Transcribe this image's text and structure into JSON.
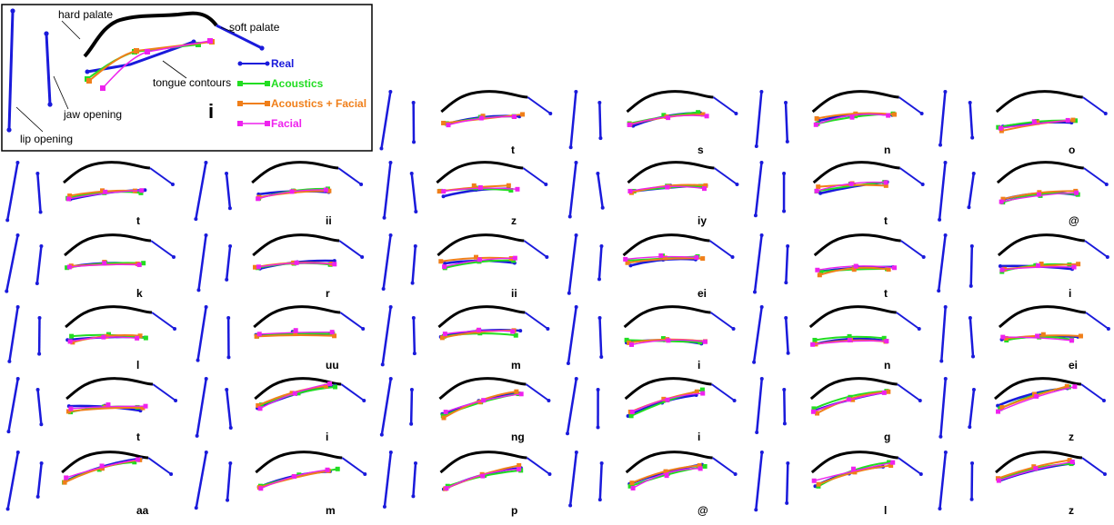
{
  "legend_panel": {
    "annotations": {
      "hard_palate": "hard palate",
      "soft_palate": "soft palate",
      "tongue_contours": "tongue contours",
      "jaw_opening": "jaw opening",
      "lip_opening": "lip opening"
    },
    "phoneme": "i",
    "series": [
      {
        "key": "real",
        "label": "Real",
        "color": "#1a1adb"
      },
      {
        "key": "acoustics",
        "label": "Acoustics",
        "color": "#22dd22"
      },
      {
        "key": "acoustics_facial",
        "label": "Acoustics + Facial",
        "color": "#f07f1a"
      },
      {
        "key": "facial",
        "label": "Facial",
        "color": "#ee22ee"
      }
    ]
  },
  "colors": {
    "palate": "#000000",
    "articulators": "#1a1adb"
  },
  "panels": [
    {
      "label": "t"
    },
    {
      "label": "s"
    },
    {
      "label": "n"
    },
    {
      "label": "o"
    },
    {
      "label": "t"
    },
    {
      "label": "ii"
    },
    {
      "label": "z"
    },
    {
      "label": "iy"
    },
    {
      "label": "t"
    },
    {
      "label": "@"
    },
    {
      "label": "k"
    },
    {
      "label": "r"
    },
    {
      "label": "ii"
    },
    {
      "label": "ei"
    },
    {
      "label": "t"
    },
    {
      "label": "i"
    },
    {
      "label": "l"
    },
    {
      "label": "uu"
    },
    {
      "label": "m"
    },
    {
      "label": "i"
    },
    {
      "label": "n"
    },
    {
      "label": "ei"
    },
    {
      "label": "t"
    },
    {
      "label": "i"
    },
    {
      "label": "ng"
    },
    {
      "label": "i"
    },
    {
      "label": "g"
    },
    {
      "label": "z"
    },
    {
      "label": "aa"
    },
    {
      "label": "m"
    },
    {
      "label": "p"
    },
    {
      "label": "@"
    },
    {
      "label": "l"
    },
    {
      "label": "z"
    }
  ]
}
